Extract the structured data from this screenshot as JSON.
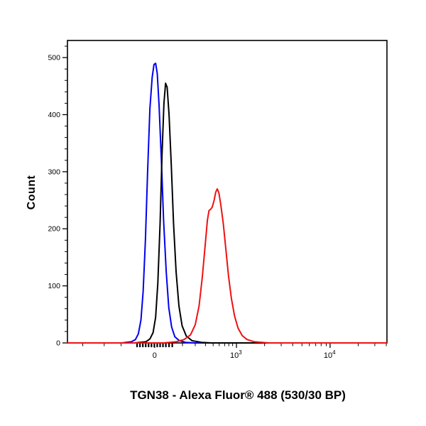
{
  "chart_data": {
    "type": "line",
    "chart_kind": "flow-cytometry-histogram-overlay",
    "title": "",
    "xlabel": "TGN38 - Alexa Fluor® 488 (530/30 BP)",
    "ylabel": "Count",
    "ylim": [
      0,
      500
    ],
    "y_axis_max": 530,
    "yticks": [
      0,
      100,
      200,
      300,
      400,
      500
    ],
    "y_minor_step": 20,
    "x_scale": "biexponential",
    "x_axis_note": "biexponential (logicle) scale, axis fractions 0-1 of plot width",
    "xticks": [
      {
        "pos": 0.273,
        "label": "0"
      },
      {
        "pos": 0.529,
        "base": "10",
        "exp": "3"
      },
      {
        "pos": 0.822,
        "base": "10",
        "exp": "4"
      }
    ],
    "x_minor_ticks": [
      0.048,
      0.115,
      0.168,
      0.36,
      0.4,
      0.432,
      0.456,
      0.475,
      0.492,
      0.505,
      0.517,
      0.617,
      0.669,
      0.705,
      0.734,
      0.757,
      0.777,
      0.794,
      0.81,
      0.91,
      0.962,
      0.998
    ],
    "x_cluster_ticks": [
      0.218,
      0.227,
      0.236,
      0.245,
      0.254,
      0.263,
      0.272,
      0.281,
      0.29,
      0.299,
      0.308,
      0.318,
      0.328
    ],
    "series": [
      {
        "name": "blue-histogram",
        "color": "#0000ee",
        "peak_count": 490,
        "points": [
          [
            0,
            0
          ],
          [
            0.17,
            0
          ],
          [
            0.2,
            2
          ],
          [
            0.213,
            6
          ],
          [
            0.222,
            16
          ],
          [
            0.23,
            40
          ],
          [
            0.237,
            90
          ],
          [
            0.244,
            180
          ],
          [
            0.251,
            300
          ],
          [
            0.258,
            410
          ],
          [
            0.265,
            465
          ],
          [
            0.271,
            488
          ],
          [
            0.276,
            490
          ],
          [
            0.281,
            472
          ],
          [
            0.287,
            415
          ],
          [
            0.294,
            320
          ],
          [
            0.301,
            215
          ],
          [
            0.309,
            125
          ],
          [
            0.317,
            62
          ],
          [
            0.326,
            28
          ],
          [
            0.336,
            11
          ],
          [
            0.35,
            4
          ],
          [
            0.37,
            1
          ],
          [
            0.4,
            0
          ],
          [
            1,
            0
          ]
        ]
      },
      {
        "name": "black-histogram",
        "color": "#000000",
        "peak_count": 455,
        "points": [
          [
            0,
            0
          ],
          [
            0.21,
            0
          ],
          [
            0.245,
            2
          ],
          [
            0.258,
            7
          ],
          [
            0.268,
            18
          ],
          [
            0.276,
            45
          ],
          [
            0.283,
            105
          ],
          [
            0.29,
            210
          ],
          [
            0.296,
            330
          ],
          [
            0.302,
            420
          ],
          [
            0.307,
            455
          ],
          [
            0.312,
            448
          ],
          [
            0.318,
            400
          ],
          [
            0.325,
            310
          ],
          [
            0.332,
            210
          ],
          [
            0.34,
            125
          ],
          [
            0.349,
            65
          ],
          [
            0.359,
            30
          ],
          [
            0.372,
            12
          ],
          [
            0.39,
            4
          ],
          [
            0.42,
            1
          ],
          [
            0.45,
            0
          ],
          [
            1,
            0
          ]
        ]
      },
      {
        "name": "red-histogram",
        "color": "#ee1111",
        "peak_count": 270,
        "points": [
          [
            0,
            0
          ],
          [
            0.3,
            0
          ],
          [
            0.34,
            2
          ],
          [
            0.365,
            6
          ],
          [
            0.385,
            14
          ],
          [
            0.4,
            32
          ],
          [
            0.412,
            65
          ],
          [
            0.422,
            115
          ],
          [
            0.431,
            170
          ],
          [
            0.438,
            215
          ],
          [
            0.443,
            232
          ],
          [
            0.448,
            234
          ],
          [
            0.453,
            238
          ],
          [
            0.459,
            250
          ],
          [
            0.464,
            264
          ],
          [
            0.469,
            270
          ],
          [
            0.474,
            263
          ],
          [
            0.48,
            242
          ],
          [
            0.488,
            208
          ],
          [
            0.496,
            163
          ],
          [
            0.504,
            118
          ],
          [
            0.513,
            78
          ],
          [
            0.523,
            47
          ],
          [
            0.534,
            26
          ],
          [
            0.547,
            13
          ],
          [
            0.562,
            6
          ],
          [
            0.585,
            2
          ],
          [
            0.63,
            0
          ],
          [
            1,
            0
          ]
        ]
      }
    ]
  }
}
